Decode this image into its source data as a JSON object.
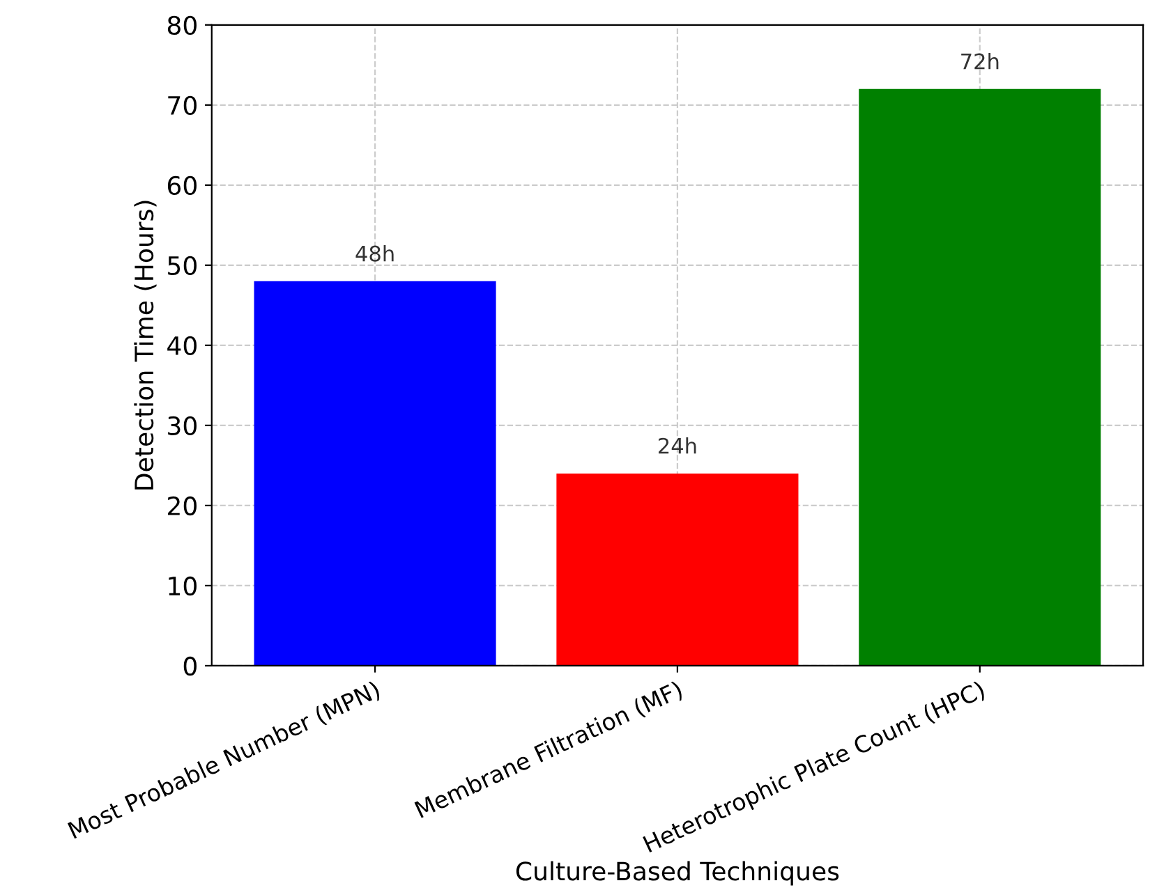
{
  "chart_data": {
    "type": "bar",
    "xlabel": "Culture-Based Techniques",
    "ylabel": "Detection Time (Hours)",
    "categories": [
      "Most Probable Number (MPN)",
      "Membrane Filtration (MF)",
      "Heterotrophic Plate Count (HPC)"
    ],
    "values": [
      48,
      24,
      72
    ],
    "colors": [
      "#0000ff",
      "#ff0000",
      "#008000"
    ],
    "value_labels": [
      "48h",
      "24h",
      "72h"
    ],
    "ylim": [
      0,
      80
    ],
    "yticks": [
      0,
      10,
      20,
      30,
      40,
      50,
      60,
      70,
      80
    ],
    "grid": true
  }
}
